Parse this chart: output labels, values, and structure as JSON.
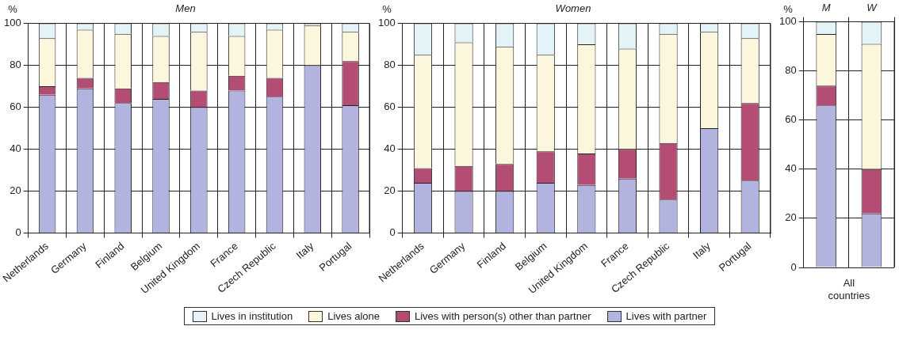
{
  "chart_data": [
    {
      "type": "bar",
      "title": "Men",
      "ylabel": "%",
      "stacked": true,
      "grid": true,
      "legend": "bottom",
      "categories": [
        "Netherlands",
        "Germany",
        "Finland",
        "Belgium",
        "United Kingdom",
        "France",
        "Czech Republic",
        "Italy",
        "Portugal"
      ],
      "ylim": [
        0,
        100
      ],
      "yticks": [
        0,
        20,
        40,
        60,
        80,
        100
      ],
      "series": [
        {
          "name": "Lives with partner",
          "color": "#b3b3e0",
          "values": [
            66,
            69,
            62,
            64,
            60,
            68,
            65,
            80,
            61
          ]
        },
        {
          "name": "Lives with person(s) other than partner",
          "color": "#b34d73",
          "values": [
            4,
            5,
            7,
            8,
            8,
            7,
            9,
            0,
            21
          ]
        },
        {
          "name": "Lives alone",
          "color": "#fcf6dc",
          "values": [
            23,
            23,
            26,
            22,
            28,
            19,
            23,
            19,
            14
          ]
        },
        {
          "name": "Lives in institution",
          "color": "#e4f3f8",
          "values": [
            7,
            3,
            5,
            6,
            4,
            6,
            3,
            1,
            4
          ]
        }
      ]
    },
    {
      "type": "bar",
      "title": "Women",
      "ylabel": "%",
      "stacked": true,
      "grid": true,
      "categories": [
        "Netherlands",
        "Germany",
        "Finland",
        "Belgium",
        "United Kingdom",
        "France",
        "Czech Republic",
        "Italy",
        "Portugal"
      ],
      "ylim": [
        0,
        100
      ],
      "yticks": [
        0,
        20,
        40,
        60,
        80,
        100
      ],
      "series": [
        {
          "color": "#b3b3e0",
          "values": [
            24,
            20,
            20,
            24,
            23,
            26,
            16,
            50,
            25
          ]
        },
        {
          "color": "#b34d73",
          "values": [
            7,
            12,
            13,
            15,
            15,
            14,
            27,
            0,
            37
          ]
        },
        {
          "color": "#fcf6dc",
          "values": [
            54,
            59,
            56,
            46,
            52,
            48,
            52,
            46,
            31
          ]
        },
        {
          "color": "#e4f3f8",
          "values": [
            15,
            9,
            11,
            15,
            10,
            12,
            5,
            4,
            7
          ]
        }
      ]
    },
    {
      "type": "bar",
      "ylabel": "%",
      "xlabel": "All countries",
      "stacked": true,
      "grid": true,
      "categories": [
        "M",
        "W"
      ],
      "ylim": [
        0,
        100
      ],
      "yticks": [
        0,
        20,
        40,
        60,
        80,
        100
      ],
      "series": [
        {
          "color": "#b3b3e0",
          "values": [
            66,
            22
          ]
        },
        {
          "color": "#b34d73",
          "values": [
            8,
            18
          ]
        },
        {
          "color": "#fcf6dc",
          "values": [
            21,
            51
          ]
        },
        {
          "color": "#e4f3f8",
          "values": [
            5,
            9
          ]
        }
      ]
    }
  ]
}
